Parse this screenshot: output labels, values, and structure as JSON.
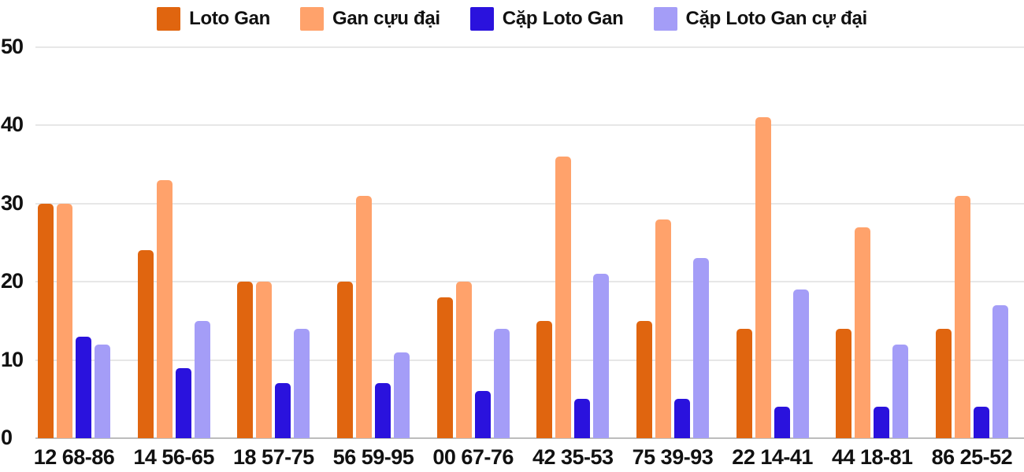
{
  "chart_data": {
    "type": "bar",
    "title": "",
    "xlabel": "",
    "ylabel": "",
    "ylim": [
      0,
      50
    ],
    "yticks": [
      0,
      10,
      20,
      30,
      40,
      50
    ],
    "grid": true,
    "legend_position": "top",
    "categories": [
      "12 68-86",
      "14 56-65",
      "18 57-75",
      "56 59-95",
      "00 67-76",
      "42 35-53",
      "75 39-93",
      "22 14-41",
      "44 18-81",
      "86 25-52"
    ],
    "series": [
      {
        "name": "Loto Gan",
        "color": "#e0650f",
        "values": [
          30,
          24,
          20,
          20,
          18,
          15,
          15,
          14,
          14,
          14
        ]
      },
      {
        "name": "Gan cựu đại",
        "color": "#ffa26b",
        "values": [
          30,
          33,
          20,
          31,
          20,
          36,
          28,
          41,
          27,
          31
        ]
      },
      {
        "name": "Cặp Loto Gan",
        "color": "#2a12dd",
        "values": [
          13,
          9,
          7,
          7,
          6,
          5,
          5,
          4,
          4,
          4
        ]
      },
      {
        "name": "Cặp Loto Gan cự đại",
        "color": "#a49df7",
        "values": [
          12,
          15,
          14,
          11,
          14,
          21,
          23,
          19,
          12,
          17
        ]
      }
    ]
  },
  "colors": {
    "background": "#ffffff",
    "gridline": "#e7e7e7",
    "axis_line": "#bdbdbd",
    "text": "#111111"
  }
}
